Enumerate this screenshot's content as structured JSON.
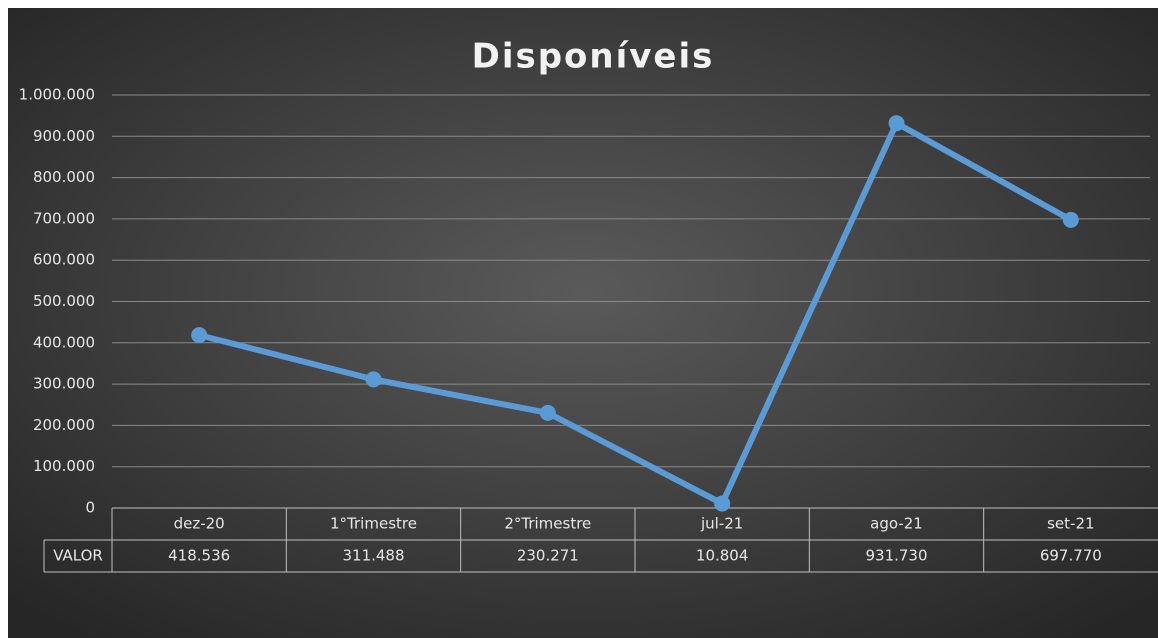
{
  "chart_data": {
    "type": "line",
    "title": "Disponíveis",
    "categories": [
      "dez-20",
      "1°Trimestre",
      "2°Trimestre",
      "jul-21",
      "ago-21",
      "set-21"
    ],
    "series": [
      {
        "name": "VALOR",
        "color": "#5b9bd5",
        "values": [
          418536,
          311488,
          230271,
          10804,
          931730,
          697770
        ],
        "value_labels": [
          "418.536",
          "311.488",
          "230.271",
          "10.804",
          "931.730",
          "697.770"
        ]
      }
    ],
    "ylim": [
      0,
      1000000
    ],
    "yticks": [
      0,
      {
        "value": 100000,
        "label": "100.000"
      },
      {
        "value": 200000,
        "label": "200.000"
      },
      {
        "value": 300000,
        "label": "300.000"
      },
      {
        "value": 400000,
        "label": "400.000"
      },
      {
        "value": 500000,
        "label": "500.000"
      },
      {
        "value": 600000,
        "label": "600.000"
      },
      {
        "value": 700000,
        "label": "700.000"
      },
      {
        "value": 800000,
        "label": "800.000"
      },
      {
        "value": 900000,
        "label": "900.000"
      },
      {
        "value": 1000000,
        "label": "1.000.000"
      }
    ],
    "grid": true,
    "data_table": true
  }
}
